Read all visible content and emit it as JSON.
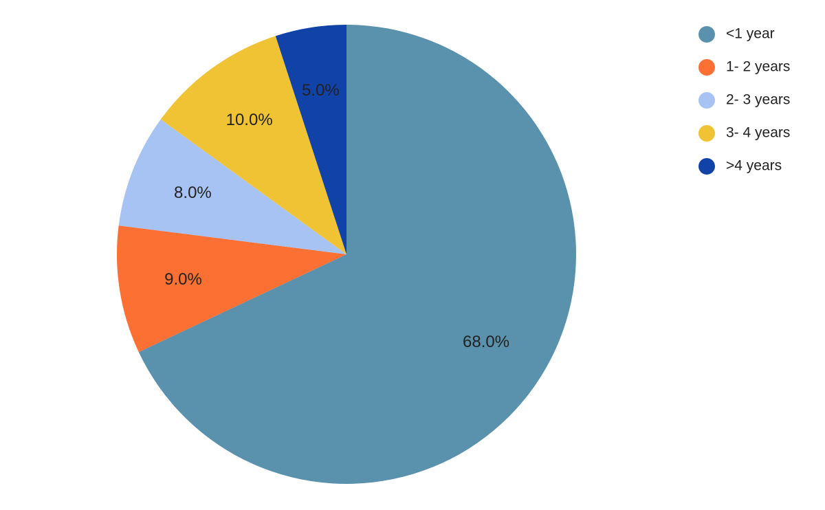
{
  "chart_data": {
    "type": "pie",
    "categories": [
      "<1 year",
      "1- 2 years",
      "2- 3 years",
      "3- 4 years",
      ">4 years"
    ],
    "values": [
      68,
      9,
      8,
      10,
      5
    ],
    "value_labels": [
      "68.0%",
      "9.0%",
      "8.0%",
      "10.0%",
      "5.0%"
    ],
    "colors": [
      "#5a92ae",
      "#fd7033",
      "#a7c3f3",
      "#f0c334",
      "#1042a8"
    ],
    "legend": "top-right"
  }
}
